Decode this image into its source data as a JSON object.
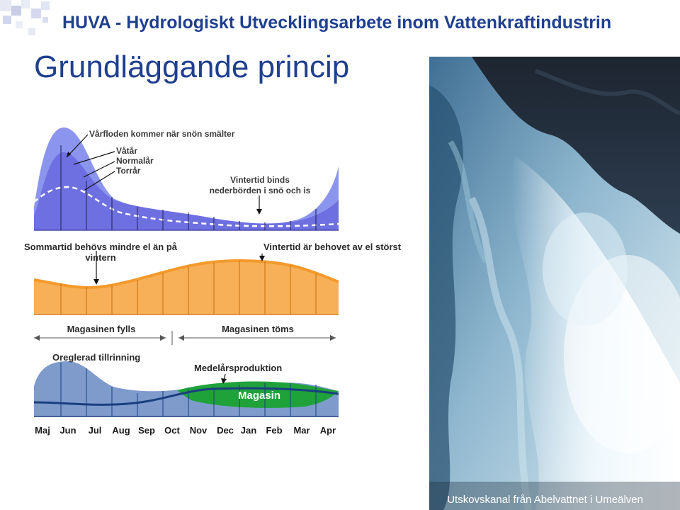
{
  "header": {
    "title": "HUVA - Hydrologiskt Utvecklingsarbete inom Vattenkraftindustrin"
  },
  "slide": {
    "title": "Grundläggande princip"
  },
  "inflow": {
    "label_spring_flood": "Vårfloden kommer när snön smälter",
    "label_wet_year": "Våtår",
    "label_normal_year": "Normalår",
    "label_dry_year": "Torrår",
    "label_winter_line1": "Vintertid binds",
    "label_winter_line2": "nederbörden i snö och is"
  },
  "demand": {
    "label_summer_line1": "Sommartid behövs mindre el än på",
    "label_summer_line2": "vintern",
    "label_winter": "Vintertid är behovet av el störst"
  },
  "reservoir": {
    "label_filling": "Magasinen fylls",
    "label_emptying": "Magasinen töms",
    "label_unregulated": "Oreglerad tillrinning",
    "label_mean_production": "Medelårsproduktion",
    "label_storage": "Magasin"
  },
  "months": [
    "Maj",
    "Jun",
    "Jul",
    "Aug",
    "Sep",
    "Oct",
    "Nov",
    "Dec",
    "Jan",
    "Feb",
    "Mar",
    "Apr"
  ],
  "photo": {
    "caption": "Utskovskanal från Abelvattnet i Umeälven"
  },
  "colors": {
    "title_blue": "#1f3f8f",
    "inflow_wet": "#8c95ee",
    "inflow_normal": "#6e6fe0",
    "demand_orange": "#f39a2c",
    "demand_orange_light": "#fcc98c",
    "storage_green": "#1fa23a",
    "inflow_steel": "#7e9bcc",
    "production_line": "#1a3f7e"
  }
}
